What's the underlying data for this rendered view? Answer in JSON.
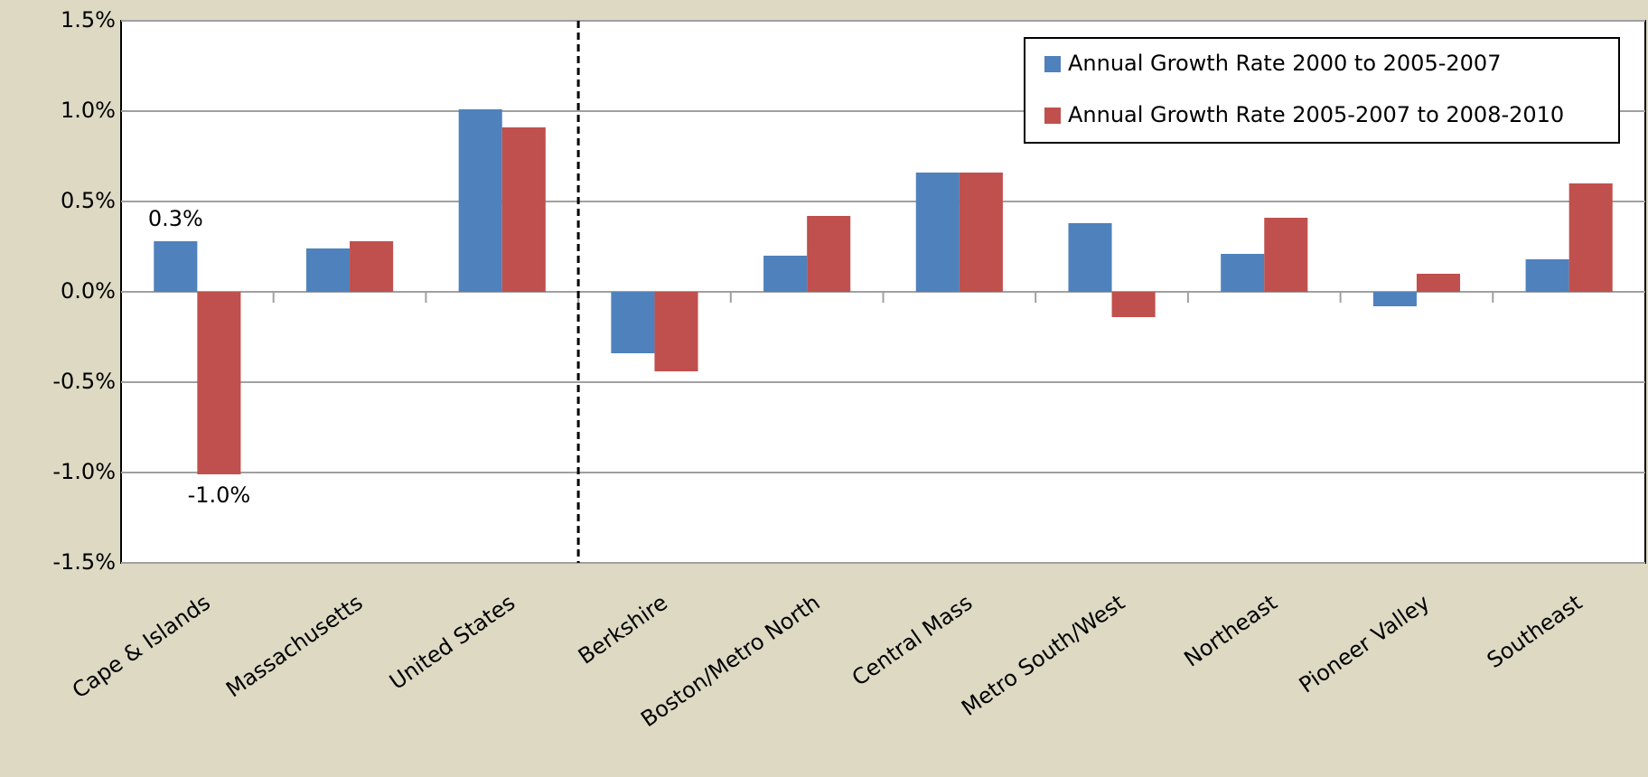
{
  "chart_data": {
    "type": "bar",
    "categories": [
      "Cape & Islands",
      "Massachusetts",
      "United States",
      "Berkshire",
      "Boston/Metro North",
      "Central Mass",
      "Metro South/West",
      "Northeast",
      "Pioneer Valley",
      "Southeast"
    ],
    "series": [
      {
        "name": "Annual Growth Rate 2000 to 2005-2007",
        "color": "#4f81bd",
        "values": [
          0.28,
          0.24,
          1.01,
          -0.34,
          0.2,
          0.66,
          0.38,
          0.21,
          -0.08,
          0.18
        ],
        "value_labels": [
          "0.3%",
          null,
          null,
          null,
          null,
          null,
          null,
          null,
          null,
          null
        ]
      },
      {
        "name": "Annual Growth Rate 2005-2007 to 2008-2010",
        "color": "#c0504d",
        "values": [
          -1.01,
          0.28,
          0.91,
          -0.44,
          0.42,
          0.66,
          -0.14,
          0.41,
          0.1,
          0.6
        ],
        "value_labels": [
          "-1.0%",
          null,
          null,
          null,
          null,
          null,
          null,
          null,
          null,
          null
        ]
      }
    ],
    "ylim": [
      -1.5,
      1.5
    ],
    "yticks": [
      {
        "value": -1.5,
        "label": "-1.5%"
      },
      {
        "value": -1.0,
        "label": "-1.0%"
      },
      {
        "value": -0.5,
        "label": "-0.5%"
      },
      {
        "value": 0,
        "label": "0.0%"
      },
      {
        "value": 0.5,
        "label": "0.5%"
      },
      {
        "value": 1.0,
        "label": "1.0%"
      },
      {
        "value": 1.5,
        "label": "1.5%"
      }
    ],
    "grid": true
  }
}
